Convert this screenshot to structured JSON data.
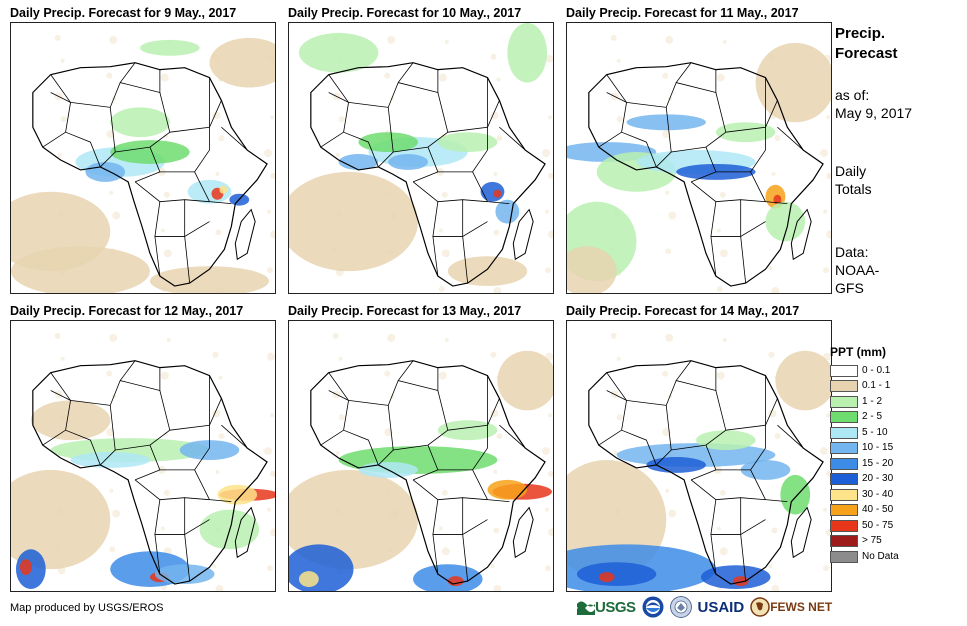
{
  "panels": [
    {
      "title": "Daily Precip. Forecast for 9 May., 2017"
    },
    {
      "title": "Daily Precip. Forecast for 10 May., 2017"
    },
    {
      "title": "Daily Precip. Forecast for 11 May., 2017"
    },
    {
      "title": "Daily Precip. Forecast for 12 May., 2017"
    },
    {
      "title": "Daily Precip. Forecast for 13 May., 2017"
    },
    {
      "title": "Daily Precip. Forecast for 14 May., 2017"
    }
  ],
  "sidebar": {
    "title_line1": "Precip.",
    "title_line2": "Forecast",
    "asof_line1": "as of:",
    "asof_line2": "May 9, 2017",
    "totals_line1": "Daily",
    "totals_line2": "Totals",
    "data_line1": "Data:",
    "data_line2": "NOAA-",
    "data_line3": "GFS"
  },
  "legend": {
    "title": "PPT (mm)",
    "items": [
      {
        "label": "0 - 0.1",
        "color": "#ffffff"
      },
      {
        "label": "0.1 - 1",
        "color": "#e8d3b0"
      },
      {
        "label": "1 - 2",
        "color": "#b9f0b0"
      },
      {
        "label": "2 - 5",
        "color": "#6fdc6f"
      },
      {
        "label": "5 - 10",
        "color": "#aee8f4"
      },
      {
        "label": "10 - 15",
        "color": "#73b5ef"
      },
      {
        "label": "15 - 20",
        "color": "#3d8ce8"
      },
      {
        "label": "20 - 30",
        "color": "#1d5fd6"
      },
      {
        "label": "30 - 40",
        "color": "#fde38a"
      },
      {
        "label": "40 - 50",
        "color": "#f7a21b"
      },
      {
        "label": "50 - 75",
        "color": "#e8361b"
      },
      {
        "label": "> 75",
        "color": "#9e1b1b"
      },
      {
        "label": "No Data",
        "color": "#8c8c8c"
      }
    ]
  },
  "credit": "Map produced by USGS/EROS",
  "logos": {
    "usgs": "USGS",
    "usaid": "USAID",
    "fews": "FEWS NET"
  }
}
